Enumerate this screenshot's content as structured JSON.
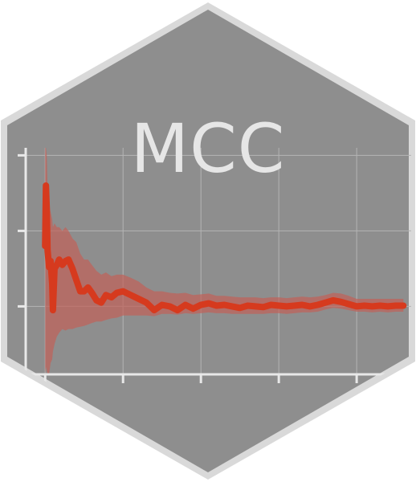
{
  "logo": {
    "title": "MCC",
    "colors": {
      "hex_fill": "#8e8e8e",
      "hex_border": "#d9d9d9",
      "grid": "#b4b4b4",
      "axis": "#e8e8e8",
      "line": "#d63a1e",
      "ribbon": "#c0625a"
    }
  },
  "chart_data": {
    "type": "line",
    "title": "",
    "xlabel": "",
    "ylabel": "",
    "grid": true,
    "series": [
      {
        "name": "",
        "x": [
          0,
          1,
          2,
          3,
          5,
          7,
          9,
          10,
          12,
          15,
          18,
          22,
          26,
          30,
          35,
          40,
          45,
          50,
          55,
          60,
          66,
          72,
          78,
          85,
          92,
          100,
          110,
          120,
          130,
          140,
          150,
          160,
          170,
          180,
          190,
          200,
          210,
          220,
          230,
          240,
          250,
          260,
          270,
          280,
          290,
          300,
          310,
          320,
          330,
          340,
          350,
          360,
          370,
          380,
          390,
          400,
          410,
          420,
          430,
          440,
          450,
          460
        ],
        "y": [
          0.8,
          1.6,
          1.3,
          0.75,
          0.52,
          0.6,
          0.3,
          -0.05,
          0.5,
          0.55,
          0.62,
          0.55,
          0.6,
          0.62,
          0.5,
          0.35,
          0.2,
          0.2,
          0.25,
          0.18,
          0.08,
          0.05,
          0.15,
          0.12,
          0.18,
          0.2,
          0.15,
          0.1,
          0.05,
          -0.05,
          0.02,
          0.0,
          -0.05,
          0.02,
          -0.03,
          0.02,
          0.04,
          0.01,
          0.02,
          0.0,
          -0.02,
          0.01,
          0.0,
          -0.01,
          0.02,
          0.01,
          0.0,
          0.01,
          0.02,
          0.0,
          0.02,
          0.05,
          0.08,
          0.06,
          0.03,
          0.0,
          0.01,
          0.0,
          0.01,
          0.0,
          0.01,
          0.01
        ],
        "lower": [
          -0.9,
          -0.8,
          -0.85,
          -0.9,
          -0.9,
          -0.75,
          -0.7,
          -0.6,
          -0.5,
          -0.4,
          -0.35,
          -0.3,
          -0.32,
          -0.3,
          -0.3,
          -0.28,
          -0.27,
          -0.26,
          -0.24,
          -0.22,
          -0.2,
          -0.2,
          -0.18,
          -0.16,
          -0.15,
          -0.12,
          -0.12,
          -0.12,
          -0.12,
          -0.13,
          -0.1,
          -0.1,
          -0.11,
          -0.09,
          -0.1,
          -0.09,
          -0.08,
          -0.09,
          -0.09,
          -0.1,
          -0.1,
          -0.1,
          -0.1,
          -0.1,
          -0.09,
          -0.09,
          -0.1,
          -0.09,
          -0.08,
          -0.08,
          -0.07,
          -0.04,
          -0.02,
          -0.03,
          -0.05,
          -0.07,
          -0.07,
          -0.08,
          -0.07,
          -0.08,
          -0.07,
          -0.07
        ],
        "upper": [
          2.1,
          2.1,
          2.0,
          1.6,
          1.35,
          1.25,
          1.15,
          1.05,
          1.1,
          1.05,
          1.05,
          1.0,
          1.05,
          1.0,
          0.9,
          0.85,
          0.7,
          0.62,
          0.62,
          0.55,
          0.47,
          0.42,
          0.45,
          0.4,
          0.42,
          0.42,
          0.38,
          0.33,
          0.25,
          0.2,
          0.2,
          0.18,
          0.17,
          0.18,
          0.15,
          0.16,
          0.17,
          0.14,
          0.14,
          0.13,
          0.12,
          0.12,
          0.12,
          0.11,
          0.12,
          0.12,
          0.11,
          0.12,
          0.13,
          0.12,
          0.13,
          0.15,
          0.18,
          0.17,
          0.14,
          0.1,
          0.1,
          0.1,
          0.1,
          0.1,
          0.1,
          0.1
        ]
      }
    ],
    "xlim": [
      -25,
      470
    ],
    "ylim": [
      -0.9,
      2.1
    ],
    "x_ticks": [
      0,
      100,
      200,
      300,
      400
    ],
    "y_ticks": [
      0,
      1,
      2
    ]
  }
}
